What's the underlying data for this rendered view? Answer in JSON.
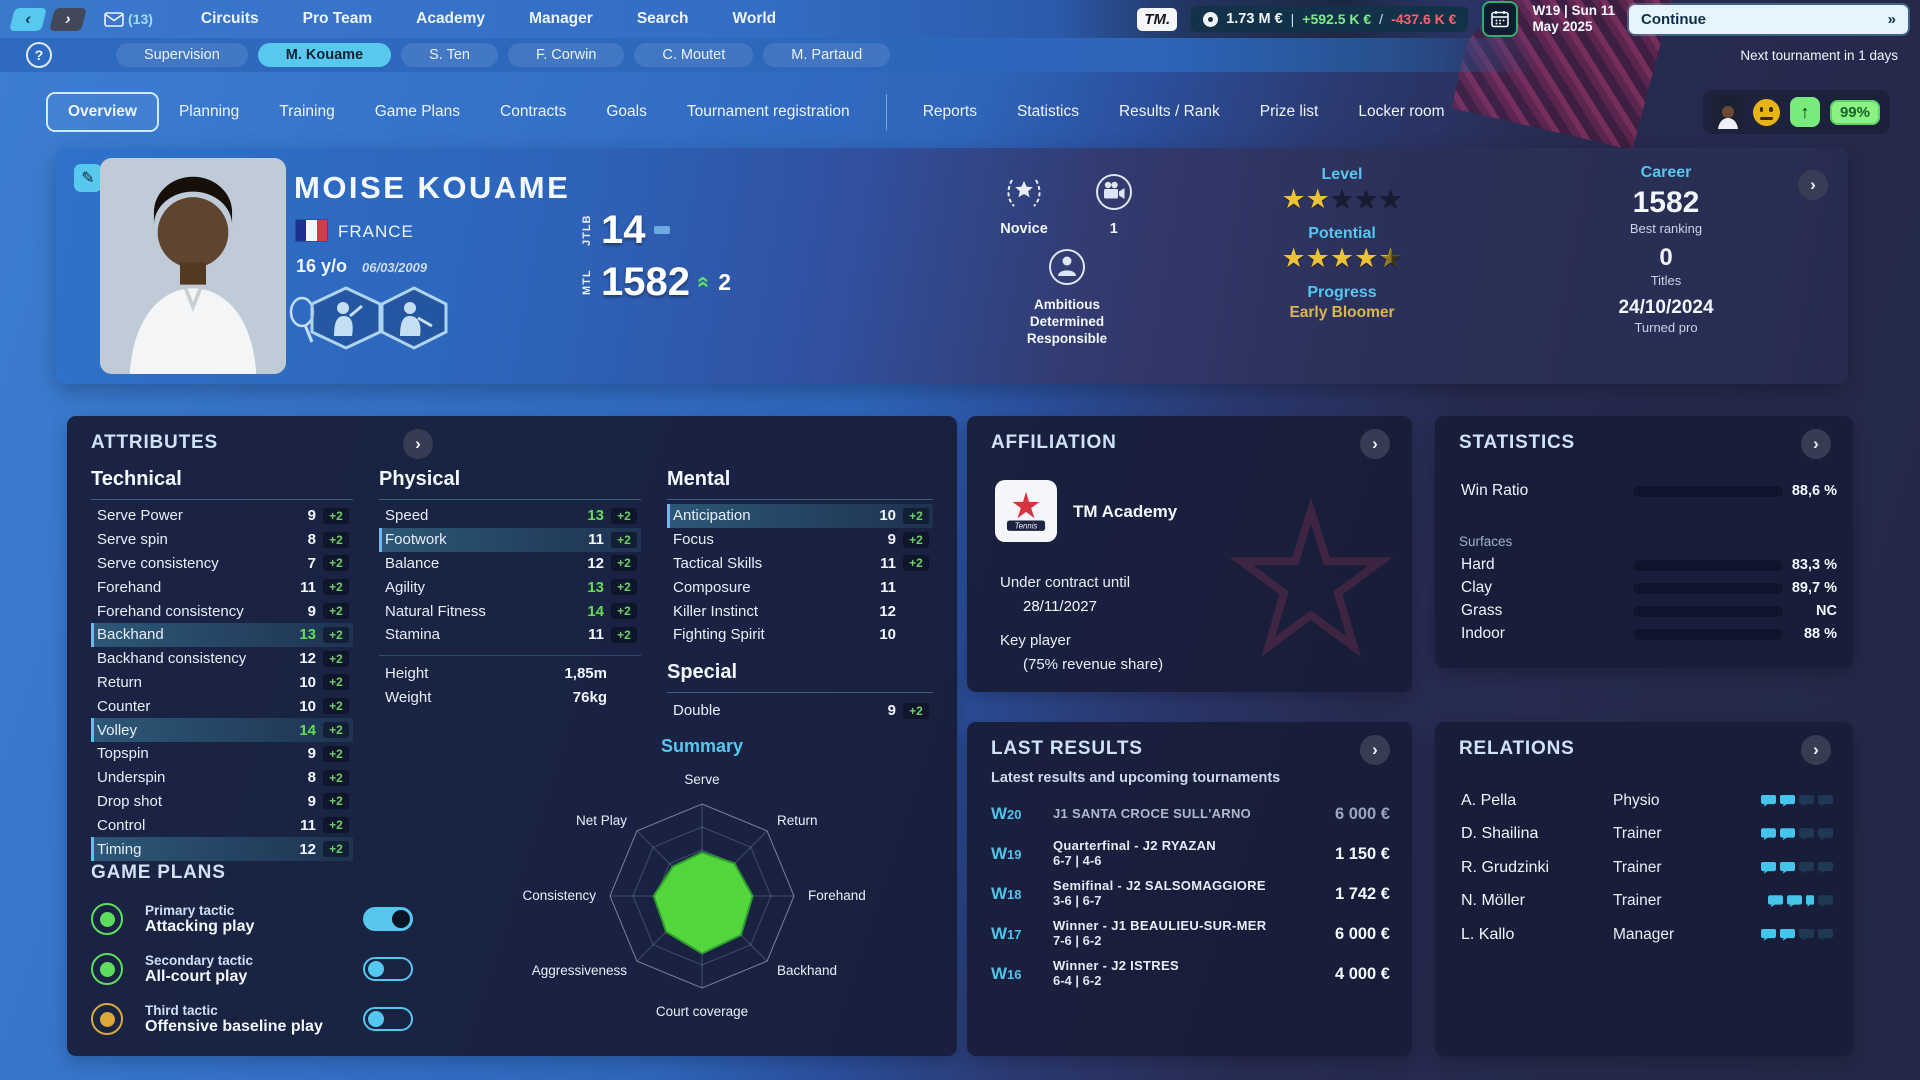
{
  "topbar": {
    "nav_back": "‹",
    "nav_forward": "›",
    "mail_count": "(13)",
    "menu": [
      "Circuits",
      "Pro Team",
      "Academy",
      "Manager",
      "Search",
      "World"
    ],
    "active_menu": "Pro Team",
    "logo": "TM.",
    "finance": {
      "balance": "1.73 M €",
      "income": "+592.5 K €",
      "separator": "/",
      "expense": "-437.6 K €"
    },
    "date_line1": "W19 | Sun 11",
    "date_line2": "May 2025",
    "continue_label": "Continue",
    "continue_chevrons": "»"
  },
  "subbar": {
    "help": "?",
    "items": [
      "Supervision",
      "M. Kouame",
      "S. Ten",
      "F. Corwin",
      "C. Moutet",
      "M. Partaud"
    ],
    "active_item": "M. Kouame",
    "next_tournament": "Next tournament in 1 days"
  },
  "tabs": {
    "primary": [
      "Overview",
      "Planning",
      "Training",
      "Game Plans",
      "Contracts",
      "Goals",
      "Tournament registration"
    ],
    "secondary": [
      "Reports",
      "Statistics",
      "Results / Rank",
      "Prize list",
      "Locker room"
    ],
    "active": "Overview",
    "morale": "99%"
  },
  "player": {
    "name": "MOISE KOUAME",
    "country": "FRANCE",
    "age": "16 y/o",
    "birthdate": "06/03/2009",
    "junior_rank": {
      "label": "JTLB",
      "value": "14",
      "change_type": "none"
    },
    "pro_rank": {
      "label": "MTL",
      "value": "1582",
      "change": "2",
      "change_type": "up",
      "up_glyph": "«"
    },
    "reputation": "Novice",
    "media_count": "1",
    "personality": [
      "Ambitious",
      "Determined",
      "Responsible"
    ],
    "level_label": "Level",
    "level_stars": 2,
    "potential_label": "Potential",
    "potential_stars": 4.5,
    "progress_label": "Progress",
    "progress_value": "Early Bloomer",
    "career": {
      "title": "Career",
      "best_ranking": "1582",
      "best_ranking_label": "Best ranking",
      "titles": "0",
      "titles_label": "Titles",
      "turned_pro_date": "24/10/2024",
      "turned_pro_label": "Turned pro"
    }
  },
  "attributes": {
    "title": "ATTRIBUTES",
    "technical": {
      "title": "Technical",
      "rows": [
        {
          "label": "Serve Power",
          "value": "9",
          "bonus": "+2"
        },
        {
          "label": "Serve spin",
          "value": "8",
          "bonus": "+2"
        },
        {
          "label": "Serve consistency",
          "value": "7",
          "bonus": "+2"
        },
        {
          "label": "Forehand",
          "value": "11",
          "bonus": "+2"
        },
        {
          "label": "Forehand consistency",
          "value": "9",
          "bonus": "+2"
        },
        {
          "label": "Backhand",
          "value": "13",
          "bonus": "+2",
          "green": true,
          "highlighted": true
        },
        {
          "label": "Backhand consistency",
          "value": "12",
          "bonus": "+2"
        },
        {
          "label": "Return",
          "value": "10",
          "bonus": "+2"
        },
        {
          "label": "Counter",
          "value": "10",
          "bonus": "+2"
        },
        {
          "label": "Volley",
          "value": "14",
          "bonus": "+2",
          "green": true,
          "highlighted": true
        },
        {
          "label": "Topspin",
          "value": "9",
          "bonus": "+2"
        },
        {
          "label": "Underspin",
          "value": "8",
          "bonus": "+2"
        },
        {
          "label": "Drop shot",
          "value": "9",
          "bonus": "+2"
        },
        {
          "label": "Control",
          "value": "11",
          "bonus": "+2"
        },
        {
          "label": "Timing",
          "value": "12",
          "bonus": "+2",
          "highlighted": true
        }
      ]
    },
    "physical": {
      "title": "Physical",
      "rows": [
        {
          "label": "Speed",
          "value": "13",
          "bonus": "+2",
          "green": true
        },
        {
          "label": "Footwork",
          "value": "11",
          "bonus": "+2",
          "highlighted": true
        },
        {
          "label": "Balance",
          "value": "12",
          "bonus": "+2"
        },
        {
          "label": "Agility",
          "value": "13",
          "bonus": "+2",
          "green": true
        },
        {
          "label": "Natural Fitness",
          "value": "14",
          "bonus": "+2",
          "green": true
        },
        {
          "label": "Stamina",
          "value": "11",
          "bonus": "+2"
        }
      ],
      "height_label": "Height",
      "height_value": "1,85m",
      "weight_label": "Weight",
      "weight_value": "76kg"
    },
    "mental": {
      "title": "Mental",
      "rows": [
        {
          "label": "Anticipation",
          "value": "10",
          "bonus": "+2",
          "highlighted": true
        },
        {
          "label": "Focus",
          "value": "9",
          "bonus": "+2"
        },
        {
          "label": "Tactical Skills",
          "value": "11",
          "bonus": "+2"
        },
        {
          "label": "Composure",
          "value": "11"
        },
        {
          "label": "Killer Instinct",
          "value": "12"
        },
        {
          "label": "Fighting Spirit",
          "value": "10"
        }
      ]
    },
    "special": {
      "title": "Special",
      "rows": [
        {
          "label": "Double",
          "value": "9",
          "bonus": "+2"
        }
      ]
    }
  },
  "chart_data": {
    "type": "radar",
    "title": "Summary",
    "axes": [
      "Serve",
      "Return",
      "Forehand",
      "Backhand",
      "Court coverage",
      "Aggressiveness",
      "Consistency",
      "Net Play"
    ],
    "values": [
      9.5,
      10,
      11,
      12,
      12.5,
      11,
      10.5,
      9
    ],
    "max": 20,
    "rings": 4,
    "fill_color": "#55e03c",
    "stroke_color": "#2e9b2e",
    "legend_position": "none",
    "grid": true
  },
  "game_plans": {
    "title": "GAME PLANS",
    "items": [
      {
        "tier": "Primary tactic",
        "name": "Attacking play",
        "color": "#5fdd5f",
        "enabled": true
      },
      {
        "tier": "Secondary tactic",
        "name": "All-court play",
        "color": "#5fdd5f",
        "enabled": false
      },
      {
        "tier": "Third tactic",
        "name": "Offensive baseline play",
        "color": "#d9a93c",
        "enabled": false
      }
    ]
  },
  "affiliation": {
    "title": "AFFILIATION",
    "org_name": "TM Academy",
    "org_logo_text": "Tennis",
    "contract_label": "Under contract until",
    "contract_date": "28/11/2027",
    "key_player_label": "Key player",
    "revenue_share": "(75% revenue share)"
  },
  "statistics": {
    "title": "STATISTICS",
    "win_ratio_label": "Win Ratio",
    "win_ratio_value": "88,6 %",
    "win_ratio_pct": 88.6,
    "surfaces_label": "Surfaces",
    "surfaces": [
      {
        "label": "Hard",
        "value": "83,3 %",
        "pct": 83.3
      },
      {
        "label": "Clay",
        "value": "89,7 %",
        "pct": 89.7
      },
      {
        "label": "Grass",
        "value": "NC",
        "pct": 0
      },
      {
        "label": "Indoor",
        "value": "88 %",
        "pct": 88
      }
    ],
    "bar_color": "#4cae4f"
  },
  "last_results": {
    "title": "LAST RESULTS",
    "subtitle": "Latest results and upcoming tournaments",
    "rows": [
      {
        "week": "W20",
        "name": "J1 SANTA CROCE SULL'ARNO",
        "score": "",
        "prize": "6 000 €",
        "muted": true
      },
      {
        "week": "W19",
        "name": "Quarterfinal - J2 RYAZAN",
        "score": "6-7 |  4-6",
        "prize": "1 150 €"
      },
      {
        "week": "W18",
        "name": "Semifinal - J2 SALSOMAGGIORE",
        "score": "3-6 |  6-7",
        "prize": "1 742 €"
      },
      {
        "week": "W17",
        "name": "Winner - J1 BEAULIEU-SUR-MER",
        "score": "7-6 |  6-2",
        "prize": "6 000 €"
      },
      {
        "week": "W16",
        "name": "Winner - J2 ISTRES",
        "score": "6-4 |  6-2",
        "prize": "4 000 €"
      }
    ]
  },
  "relations": {
    "title": "RELATIONS",
    "rows": [
      {
        "name": "A. Pella",
        "role": "Physio",
        "bubbles_filled": 2,
        "bubbles_half": false,
        "bubbles_total": 4
      },
      {
        "name": "D. Shailina",
        "role": "Trainer",
        "bubbles_filled": 2,
        "bubbles_half": false,
        "bubbles_total": 4
      },
      {
        "name": "R. Grudzinki",
        "role": "Trainer",
        "bubbles_filled": 2,
        "bubbles_half": false,
        "bubbles_total": 4
      },
      {
        "name": "N. Möller",
        "role": "Trainer",
        "bubbles_filled": 2,
        "bubbles_half": true,
        "bubbles_total": 4
      },
      {
        "name": "L. Kallo",
        "role": "Manager",
        "bubbles_filled": 2,
        "bubbles_half": false,
        "bubbles_total": 4
      }
    ]
  },
  "colors": {
    "accent_cyan": "#56c7ef",
    "attr_green": "#63dd55",
    "bonus_green": "#6fcf6b",
    "bar_green": "#4cae4f",
    "star_gold": "#ecc238",
    "progress_gold": "#d9b64e",
    "money_green": "#7df083",
    "money_red": "#ff5f6e"
  }
}
